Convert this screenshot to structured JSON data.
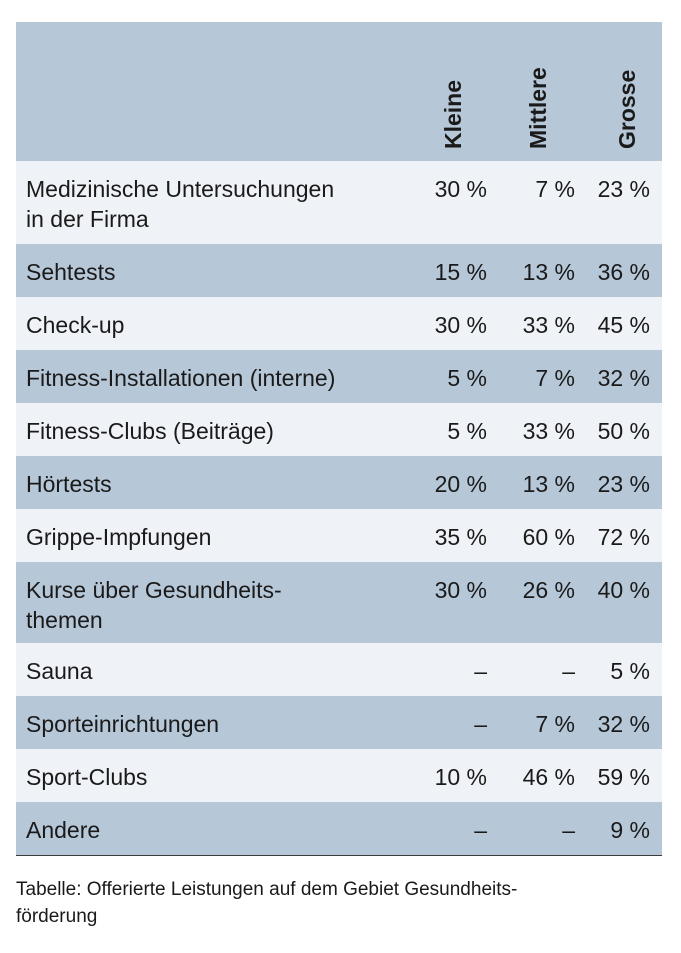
{
  "table": {
    "columns": [
      "Kleine",
      "Mittlere",
      "Grosse"
    ],
    "rows": [
      {
        "label_line1": "Medizinische Untersuchungen",
        "label_line2": "in der Firma",
        "values": [
          "30 %",
          "7 %",
          "23 %"
        ]
      },
      {
        "label_line1": "Sehtests",
        "label_line2": "",
        "values": [
          "15 %",
          "13 %",
          "36 %"
        ]
      },
      {
        "label_line1": "Check-up",
        "label_line2": "",
        "values": [
          "30 %",
          "33 %",
          "45 %"
        ]
      },
      {
        "label_line1": "Fitness-Installationen (interne)",
        "label_line2": "",
        "values": [
          "5 %",
          "7 %",
          "32 %"
        ]
      },
      {
        "label_line1": "Fitness-Clubs (Beiträge)",
        "label_line2": "",
        "values": [
          "5 %",
          "33 %",
          "50 %"
        ]
      },
      {
        "label_line1": "Hörtests",
        "label_line2": "",
        "values": [
          "20 %",
          "13 %",
          "23 %"
        ]
      },
      {
        "label_line1": "Grippe-Impfungen",
        "label_line2": "",
        "values": [
          "35 %",
          "60 %",
          "72 %"
        ]
      },
      {
        "label_line1": "Kurse über Gesundheits-",
        "label_line2": "themen",
        "values": [
          "30 %",
          "26 %",
          "40 %"
        ]
      },
      {
        "label_line1": "Sauna",
        "label_line2": "",
        "values": [
          "–",
          "–",
          "5 %"
        ]
      },
      {
        "label_line1": "Sporteinrichtungen",
        "label_line2": "",
        "values": [
          "–",
          "7 %",
          "32 %"
        ]
      },
      {
        "label_line1": "Sport-Clubs",
        "label_line2": "",
        "values": [
          "10 %",
          "46 %",
          "59 %"
        ]
      },
      {
        "label_line1": "Andere",
        "label_line2": "",
        "values": [
          "–",
          "–",
          "9 %"
        ]
      }
    ]
  },
  "caption": {
    "line1": "Tabelle: Offerierte Leistungen auf dem Gebiet Gesundheits-",
    "line2": "förderung"
  },
  "colors": {
    "header_band": "#b6c7d8",
    "row_light": "#eff3f7",
    "row_dark": "#b6c7d8"
  }
}
